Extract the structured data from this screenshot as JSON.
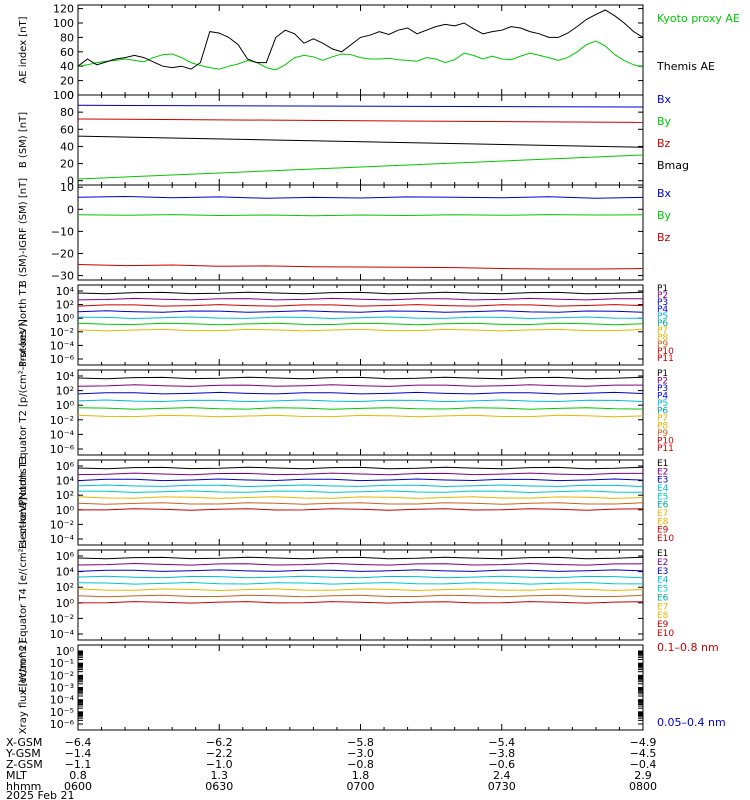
{
  "chart_data": [
    {
      "type": "line",
      "ylabel": "AE index [nT]",
      "yticks": [
        "0",
        "20",
        "40",
        "60",
        "80",
        "100",
        "120"
      ],
      "ylim": [
        0,
        125
      ],
      "x": [
        0,
        2,
        4,
        6,
        8,
        10,
        12,
        14,
        16,
        18,
        20,
        22,
        24,
        26,
        28,
        30,
        32,
        34,
        36,
        38,
        40,
        42,
        44,
        46,
        48,
        50,
        52,
        54,
        56,
        58,
        60,
        62,
        64,
        66,
        68,
        70,
        72,
        74,
        76,
        78,
        80,
        82,
        84,
        86,
        88,
        90,
        92,
        94,
        96,
        98,
        100,
        102,
        104,
        106,
        108,
        110,
        112,
        114,
        116,
        118,
        120
      ],
      "series": [
        {
          "name": "Kyoto proxy AE",
          "color": "#00c800",
          "values": [
            40,
            42,
            45,
            47,
            48,
            50,
            48,
            46,
            52,
            56,
            57,
            52,
            45,
            41,
            38,
            36,
            40,
            43,
            48,
            45,
            38,
            35,
            42,
            52,
            55,
            53,
            48,
            53,
            57,
            56,
            52,
            50,
            50,
            51,
            49,
            48,
            47,
            52,
            50,
            45,
            49,
            58,
            55,
            50,
            54,
            50,
            49,
            54,
            58,
            55,
            52,
            48,
            52,
            60,
            70,
            75,
            68,
            56,
            48,
            42,
            39
          ]
        },
        {
          "name": "Themis AE",
          "color": "#000000",
          "values": [
            40,
            50,
            42,
            46,
            50,
            52,
            55,
            52,
            46,
            40,
            38,
            40,
            36,
            45,
            88,
            86,
            80,
            70,
            50,
            45,
            45,
            80,
            90,
            85,
            72,
            78,
            72,
            64,
            60,
            70,
            80,
            83,
            88,
            84,
            90,
            93,
            85,
            90,
            95,
            98,
            96,
            100,
            92,
            85,
            88,
            90,
            95,
            93,
            88,
            85,
            80,
            80,
            86,
            95,
            105,
            112,
            118,
            110,
            100,
            88,
            80
          ]
        }
      ],
      "legend": [
        "Kyoto proxy AE",
        "Themis AE"
      ]
    },
    {
      "type": "line",
      "ylabel": "B (SM) [nT]",
      "yticks": [
        "0",
        "20",
        "40",
        "60",
        "80",
        "100"
      ],
      "ylim": [
        -5,
        100
      ],
      "x": [
        0,
        120
      ],
      "series": [
        {
          "name": "Bx",
          "color": "#0000c8",
          "values": [
            88,
            86
          ]
        },
        {
          "name": "By",
          "color": "#00c800",
          "values": [
            2,
            30
          ]
        },
        {
          "name": "Bz",
          "color": "#c80000",
          "values": [
            72,
            68
          ]
        },
        {
          "name": "Bmag",
          "color": "#000000",
          "values": [
            52,
            39
          ]
        }
      ],
      "legend": [
        "Bx",
        "By",
        "Bz",
        "Bmag"
      ]
    },
    {
      "type": "line",
      "ylabel": "B (SM)-IGRF (SM) [nT]",
      "yticks": [
        "10",
        "0",
        "−10",
        "−20",
        "−30"
      ],
      "ylim": [
        -32,
        11
      ],
      "x": [
        0,
        10,
        20,
        30,
        40,
        50,
        60,
        70,
        80,
        90,
        100,
        110,
        120
      ],
      "series": [
        {
          "name": "Bx",
          "color": "#0000c8",
          "values": [
            5.5,
            5.8,
            5.2,
            5.6,
            5.0,
            5.4,
            5.1,
            5.6,
            5.5,
            5.2,
            5.7,
            5.0,
            5.4
          ]
        },
        {
          "name": "By",
          "color": "#00c800",
          "values": [
            -2.5,
            -2.7,
            -2.4,
            -2.8,
            -2.6,
            -2.9,
            -2.6,
            -2.8,
            -2.5,
            -2.7,
            -2.4,
            -2.6,
            -2.5
          ]
        },
        {
          "name": "Bz",
          "color": "#c80000",
          "values": [
            -25,
            -25.5,
            -25.2,
            -25.8,
            -25.6,
            -26,
            -26.1,
            -26.2,
            -26.4,
            -26.8,
            -27,
            -27,
            -26.8
          ]
        }
      ],
      "legend": [
        "Bx",
        "By",
        "Bz"
      ]
    },
    {
      "type": "line",
      "yscale": "log",
      "ylabel": "Protons North T1",
      "yticks": [
        "10⁴",
        "10²",
        "10⁰",
        "10⁻²",
        "10⁻⁴",
        "10⁻⁶"
      ],
      "ylim": [
        -6,
        4
      ],
      "legend": [
        "P1",
        "P2",
        "P3",
        "P4",
        "P5",
        "P6",
        "P7",
        "P8",
        "P9",
        "P10",
        "P11"
      ],
      "legend_colors": [
        "#000000",
        "#800080",
        "#0000c8",
        "#0000ff",
        "#00bcd4",
        "#00a0a0",
        "#e6b800",
        "#e6b800",
        "#c8641e",
        "#c80000",
        "#c80000"
      ]
    },
    {
      "type": "line",
      "yscale": "log",
      "ylabel": "Protons Equator T2 [p/(cm²-s-sr-keV)]",
      "yticks": [
        "10⁴",
        "10²",
        "10⁰",
        "10⁻²",
        "10⁻⁴",
        "10⁻⁶"
      ],
      "ylim": [
        -6,
        4
      ],
      "legend": [
        "P1",
        "P2",
        "P3",
        "P4",
        "P5",
        "P6",
        "P7",
        "P8",
        "P9",
        "P10",
        "P11"
      ],
      "legend_colors": [
        "#000000",
        "#800080",
        "#0000c8",
        "#0000ff",
        "#00bcd4",
        "#00a0a0",
        "#e6b800",
        "#e6b800",
        "#c8641e",
        "#c80000",
        "#c80000"
      ]
    },
    {
      "type": "line",
      "yscale": "log",
      "ylabel": "Electrons North T3",
      "yticks": [
        "10⁶",
        "10⁴",
        "10²",
        "10⁰",
        "10⁻²",
        "10⁻⁴"
      ],
      "ylim": [
        -4,
        6
      ],
      "legend": [
        "E1",
        "E2",
        "E3",
        "E4",
        "E5",
        "E6",
        "E7",
        "E8",
        "E9",
        "E10"
      ],
      "legend_colors": [
        "#000000",
        "#800080",
        "#0000c8",
        "#00bcd4",
        "#00c8c8",
        "#00a0a0",
        "#e6b800",
        "#e6b800",
        "#c80000",
        "#c80000"
      ]
    },
    {
      "type": "line",
      "yscale": "log",
      "ylabel": "Electrons Equator T4 [e/(cm²-s-sr-keV)]",
      "yticks": [
        "10⁶",
        "10⁴",
        "10²",
        "10⁰",
        "10⁻²",
        "10⁻⁴"
      ],
      "ylim": [
        -4,
        6
      ],
      "legend": [
        "E1",
        "E2",
        "E3",
        "E4",
        "E5",
        "E6",
        "E7",
        "E8",
        "E9",
        "E10"
      ],
      "legend_colors": [
        "#000000",
        "#800080",
        "#0000c8",
        "#00bcd4",
        "#00c8c8",
        "#00a0a0",
        "#e6b800",
        "#e6b800",
        "#c80000",
        "#c80000"
      ]
    },
    {
      "type": "line",
      "yscale": "log",
      "ylabel": "Xray flux [W/m^2]",
      "yticks": [
        "10⁰",
        "10⁻¹",
        "10⁻²",
        "10⁻³",
        "10⁻⁴",
        "10⁻⁵",
        "10⁻⁶"
      ],
      "ylim": [
        -6,
        0
      ],
      "legend": [
        "0.1–0.8 nm",
        "0.05–0.4 nm"
      ],
      "legend_colors": [
        "#c80000",
        "#0000c8"
      ]
    }
  ],
  "x_axis": {
    "row_labels": [
      "X-GSM",
      "Y-GSM",
      "Z-GSM",
      "MLT",
      "hhmm"
    ],
    "date": "2025 Feb 21",
    "ticks": [
      {
        "xgsm": "−6.4",
        "ygsm": "−1.4",
        "zgsm": "−1.1",
        "mlt": "0.8",
        "hhmm": "0600"
      },
      {
        "xgsm": "−6.2",
        "ygsm": "−2.2",
        "zgsm": "−1.0",
        "mlt": "1.3",
        "hhmm": "0630"
      },
      {
        "xgsm": "−5.8",
        "ygsm": "−3.0",
        "zgsm": "−0.8",
        "mlt": "1.8",
        "hhmm": "0700"
      },
      {
        "xgsm": "−5.4",
        "ygsm": "−3.8",
        "zgsm": "−0.6",
        "mlt": "2.4",
        "hhmm": "0730"
      },
      {
        "xgsm": "−4.9",
        "ygsm": "−4.5",
        "zgsm": "−0.4",
        "mlt": "2.9",
        "hhmm": "0800"
      }
    ]
  }
}
